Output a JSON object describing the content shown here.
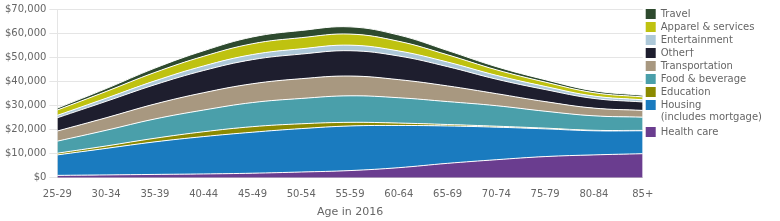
{
  "chart_data": {
    "type": "area",
    "stacked": true,
    "xlabel": "Age in 2016",
    "categories": [
      "25-29",
      "30-34",
      "35-39",
      "40-44",
      "45-49",
      "50-54",
      "55-59",
      "60-64",
      "65-69",
      "70-74",
      "75-79",
      "80-84",
      "85+"
    ],
    "series": [
      {
        "name": "Health care",
        "color": "#6a3d8f",
        "values": [
          1000,
          1200,
          1400,
          1600,
          1900,
          2400,
          3000,
          4200,
          6000,
          7500,
          8800,
          9500,
          10000
        ]
      },
      {
        "name": "Housing\n(includes mortgage)",
        "color": "#1a7bbf",
        "values": [
          8500,
          11000,
          13500,
          15500,
          17000,
          18000,
          18500,
          17500,
          15500,
          13500,
          11500,
          10000,
          9500
        ]
      },
      {
        "name": "Education",
        "color": "#8c8a00",
        "values": [
          700,
          1000,
          1500,
          2000,
          2300,
          2000,
          1500,
          1000,
          600,
          400,
          300,
          200,
          150
        ]
      },
      {
        "name": "Food & beverage",
        "color": "#4a9faa",
        "values": [
          5000,
          6500,
          8000,
          9000,
          10000,
          10500,
          11000,
          10500,
          9500,
          8500,
          7000,
          6000,
          5500
        ]
      },
      {
        "name": "Transportation",
        "color": "#a89880",
        "values": [
          4200,
          5200,
          6200,
          7200,
          7800,
          8200,
          8200,
          7500,
          6500,
          5000,
          4000,
          3200,
          2800
        ]
      },
      {
        "name": "Other†",
        "color": "#1e1e2e",
        "values": [
          5500,
          6800,
          8000,
          9200,
          10000,
          10200,
          10500,
          9800,
          8000,
          6000,
          5000,
          4000,
          3500
        ]
      },
      {
        "name": "Entertainment",
        "color": "#adc8d8",
        "values": [
          1000,
          1300,
          1600,
          1900,
          2100,
          2200,
          2300,
          2100,
          1900,
          1600,
          1300,
          1000,
          900
        ]
      },
      {
        "name": "Apparel & services",
        "color": "#bfc210",
        "values": [
          2200,
          2800,
          3500,
          4000,
          4500,
          4600,
          4600,
          4000,
          3000,
          2300,
          1800,
          1400,
          1200
        ]
      },
      {
        "name": "Travel",
        "color": "#2e4a2e",
        "values": [
          800,
          1200,
          1800,
          2300,
          2800,
          3000,
          3000,
          2600,
          1800,
          1300,
          1000,
          800,
          700
        ]
      }
    ],
    "ylim": [
      0,
      70000
    ],
    "yticks": [
      {
        "value": 0,
        "label": "$0"
      },
      {
        "value": 10000,
        "label": "$10,000"
      },
      {
        "value": 20000,
        "label": "$20,000"
      },
      {
        "value": 30000,
        "label": "$30,000"
      },
      {
        "value": 40000,
        "label": "$40,000"
      },
      {
        "value": 50000,
        "label": "$50,000"
      },
      {
        "value": 60000,
        "label": "$60,000"
      },
      {
        "value": 70000,
        "label": "$70,000"
      }
    ],
    "grid": "y",
    "legend": "right"
  }
}
